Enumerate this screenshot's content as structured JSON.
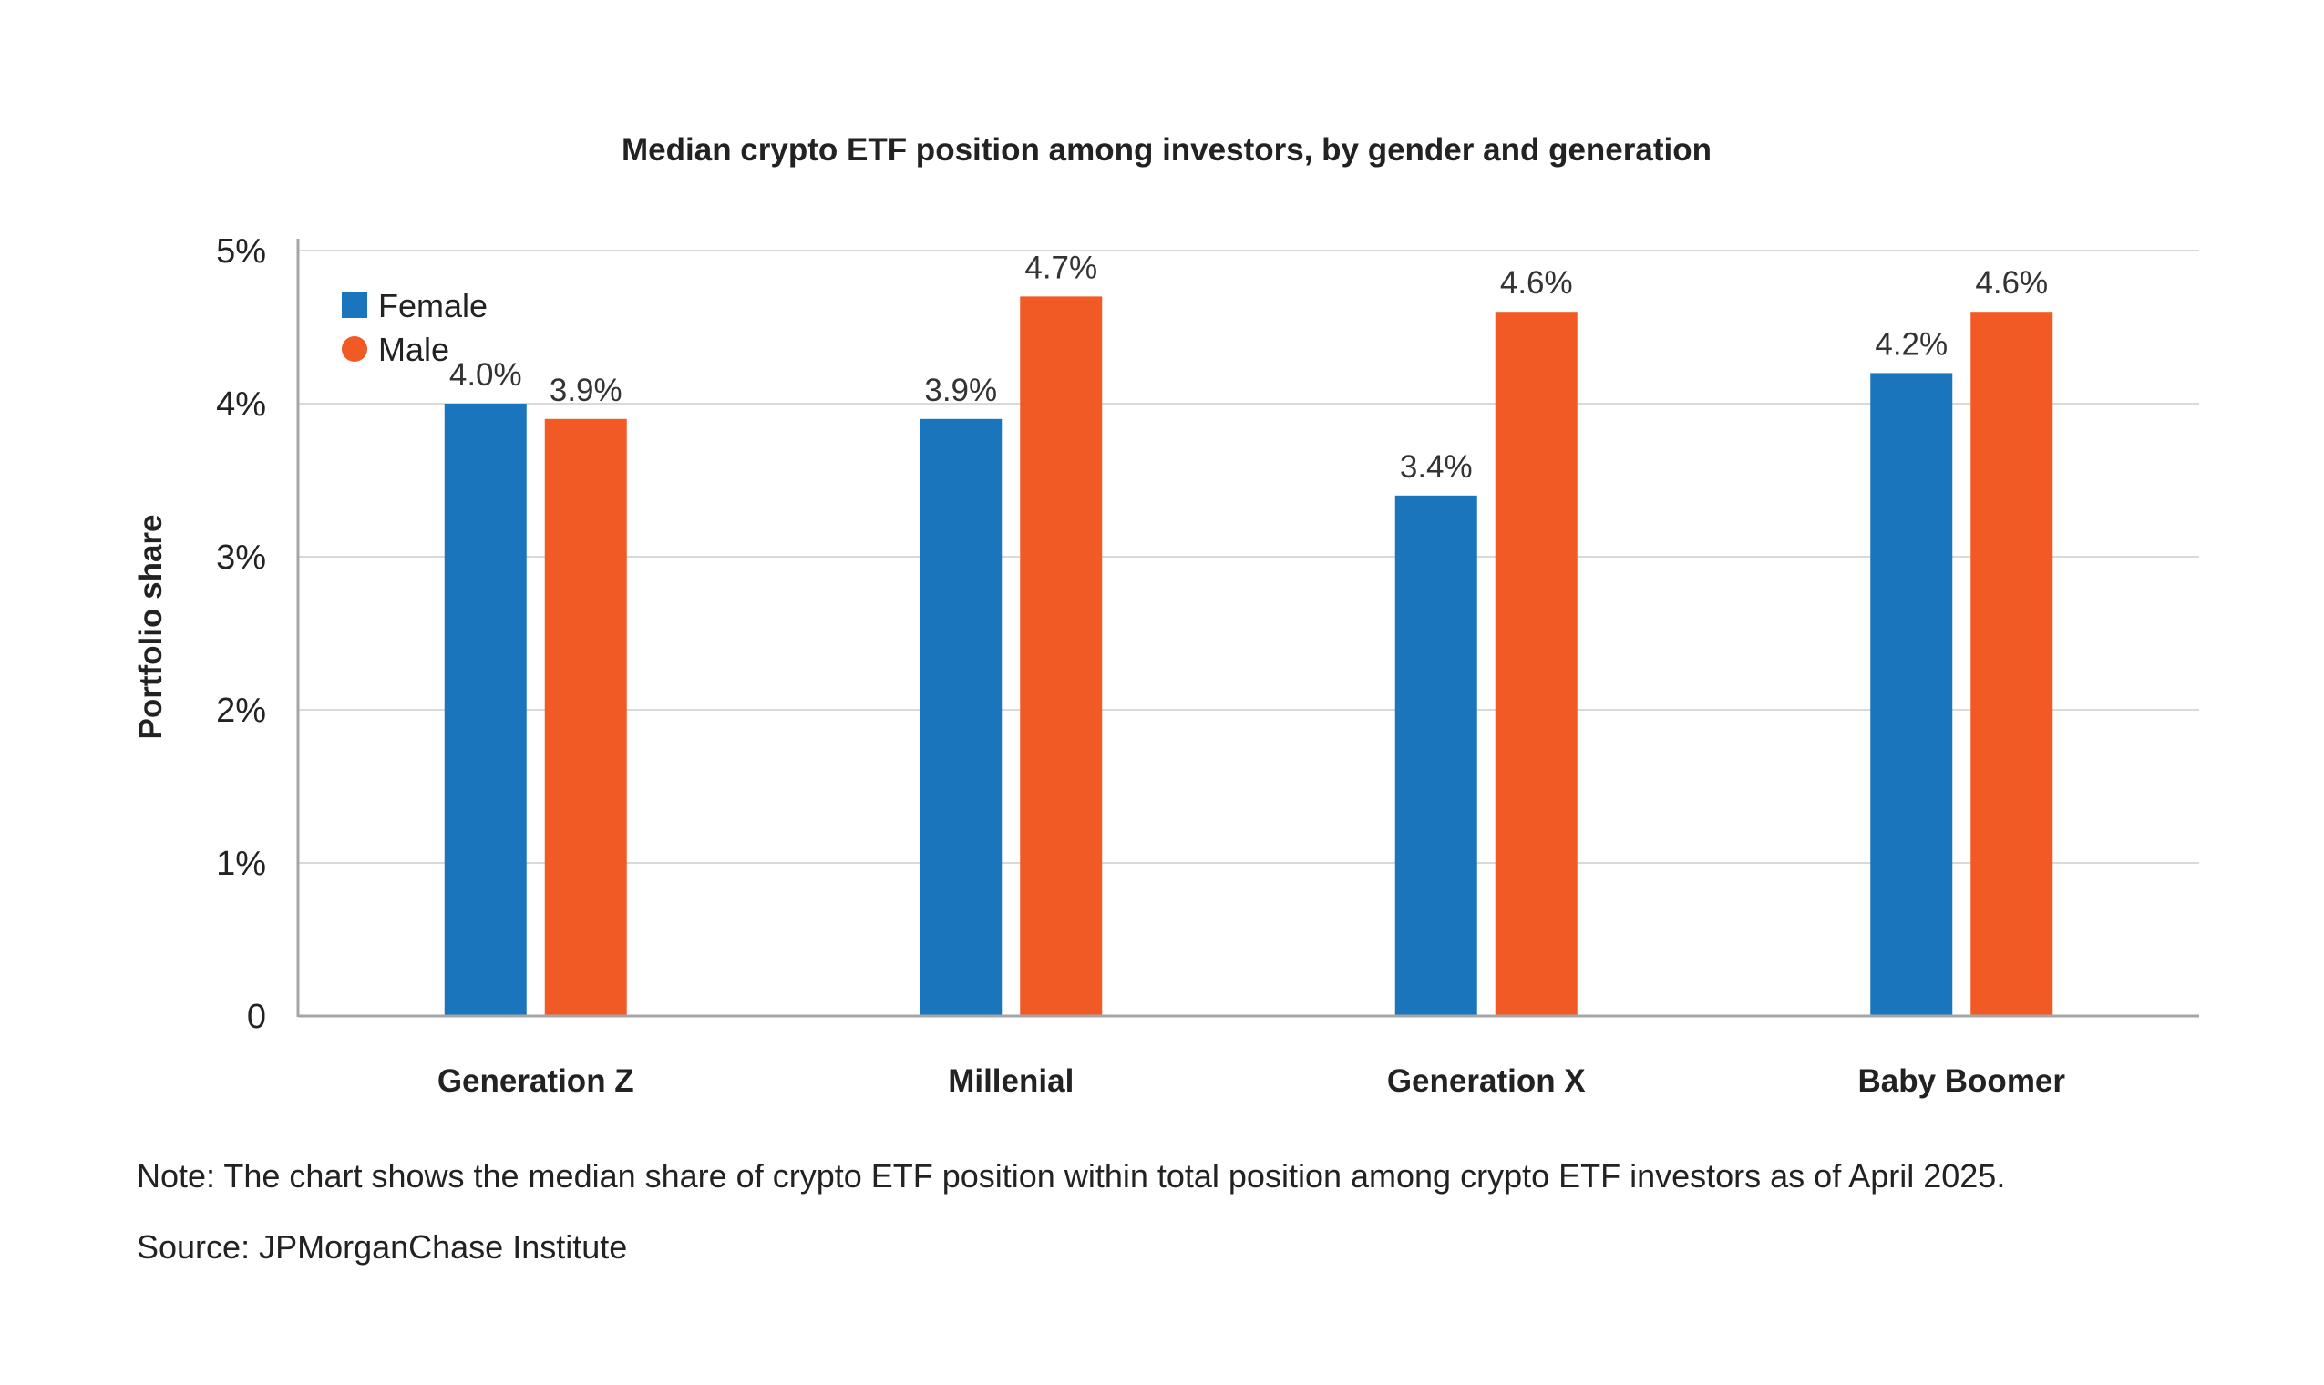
{
  "chart_data": {
    "type": "bar",
    "title": "Median crypto ETF position among investors, by gender and generation",
    "ylabel": "Portfolio share",
    "xlabel": "",
    "categories": [
      "Generation Z",
      "Millenial",
      "Generation X",
      "Baby Boomer"
    ],
    "series": [
      {
        "name": "Female",
        "color": "#1b75bc",
        "values": [
          4.0,
          3.9,
          3.4,
          4.2
        ],
        "labels": [
          "4.0%",
          "3.9%",
          "3.4%",
          "4.2%"
        ]
      },
      {
        "name": "Male",
        "color": "#f15a24",
        "values": [
          3.9,
          4.7,
          4.6,
          4.6
        ],
        "labels": [
          "3.9%",
          "4.7%",
          "4.6%",
          "4.6%"
        ]
      }
    ],
    "ylim": [
      0,
      5
    ],
    "yticks": [
      0,
      1,
      2,
      3,
      4,
      5
    ],
    "ytick_labels": [
      "0",
      "1%",
      "2%",
      "3%",
      "4%",
      "5%"
    ],
    "grid": true,
    "legend_position": "top-left"
  },
  "note": "Note: The chart shows the median share of crypto ETF position within total position among crypto ETF investors as of April 2025.",
  "source": "Source: JPMorganChase Institute"
}
